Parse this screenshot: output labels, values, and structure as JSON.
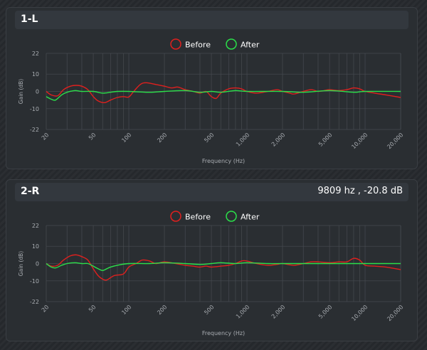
{
  "panels": [
    {
      "title": "1-L",
      "readout": "",
      "chart_data": {
        "type": "line",
        "xscale": "log",
        "xlim": [
          20,
          20000
        ],
        "ylim": [
          -22,
          22
        ],
        "xlabel": "Frequency (Hz)",
        "ylabel": "Gain (dB)",
        "xticks": [
          20,
          50,
          100,
          200,
          500,
          1000,
          2000,
          5000,
          10000,
          20000
        ],
        "xtick_labels": [
          "20",
          "50",
          "100",
          "200",
          "500",
          "1,000",
          "2,000",
          "5,000",
          "10,000",
          "20,000"
        ],
        "yticks": [
          22,
          10,
          0,
          -10,
          -22
        ],
        "ytick_labels": [
          "22",
          "10",
          "0",
          "-10",
          "-22"
        ],
        "legend_position": "top-center",
        "grid": true,
        "series": [
          {
            "name": "Before",
            "color": "#e0201e",
            "points": [
              [
                20,
                0
              ],
              [
                22,
                -2
              ],
              [
                25,
                -2.5
              ],
              [
                28,
                1
              ],
              [
                32,
                3
              ],
              [
                36,
                3.5
              ],
              [
                40,
                3
              ],
              [
                45,
                1
              ],
              [
                50,
                -3
              ],
              [
                55,
                -5.5
              ],
              [
                62,
                -6.5
              ],
              [
                70,
                -5
              ],
              [
                80,
                -3.5
              ],
              [
                90,
                -3
              ],
              [
                100,
                -3.2
              ],
              [
                110,
                0
              ],
              [
                125,
                4
              ],
              [
                140,
                5
              ],
              [
                170,
                4
              ],
              [
                200,
                3
              ],
              [
                230,
                2
              ],
              [
                260,
                2.5
              ],
              [
                300,
                1
              ],
              [
                350,
                0
              ],
              [
                400,
                -1
              ],
              [
                450,
                0
              ],
              [
                500,
                -3
              ],
              [
                550,
                -4
              ],
              [
                600,
                -1
              ],
              [
                700,
                1.5
              ],
              [
                800,
                2
              ],
              [
                900,
                1.5
              ],
              [
                1000,
                0
              ],
              [
                1200,
                -1
              ],
              [
                1500,
                0
              ],
              [
                1800,
                1
              ],
              [
                2000,
                0
              ],
              [
                2300,
                -1
              ],
              [
                2500,
                -1.5
              ],
              [
                3000,
                0
              ],
              [
                3500,
                1
              ],
              [
                4000,
                0
              ],
              [
                4500,
                0.5
              ],
              [
                5000,
                1
              ],
              [
                6000,
                0.5
              ],
              [
                7000,
                1
              ],
              [
                8000,
                2
              ],
              [
                9000,
                1.5
              ],
              [
                10000,
                0
              ],
              [
                12000,
                -1
              ],
              [
                15000,
                -2
              ],
              [
                20000,
                -3.5
              ]
            ]
          },
          {
            "name": "After",
            "color": "#2be04a",
            "points": [
              [
                20,
                -3
              ],
              [
                22,
                -4.5
              ],
              [
                24,
                -5
              ],
              [
                27,
                -2
              ],
              [
                30,
                -0.5
              ],
              [
                35,
                0.5
              ],
              [
                40,
                0
              ],
              [
                50,
                0
              ],
              [
                60,
                -1
              ],
              [
                70,
                -0.5
              ],
              [
                80,
                0
              ],
              [
                100,
                0
              ],
              [
                150,
                -0.5
              ],
              [
                200,
                0
              ],
              [
                300,
                0.5
              ],
              [
                400,
                -0.5
              ],
              [
                500,
                0
              ],
              [
                600,
                -0.5
              ],
              [
                800,
                0.5
              ],
              [
                1000,
                0
              ],
              [
                2000,
                0
              ],
              [
                3000,
                -0.5
              ],
              [
                5000,
                0.5
              ],
              [
                8000,
                -0.5
              ],
              [
                10000,
                0
              ],
              [
                20000,
                0
              ]
            ]
          }
        ]
      }
    },
    {
      "title": "2-R",
      "readout": "9809 hz , -20.8 dB",
      "chart_data": {
        "type": "line",
        "xscale": "log",
        "xlim": [
          20,
          20000
        ],
        "ylim": [
          -22,
          22
        ],
        "xlabel": "Frequency (Hz)",
        "ylabel": "Gain (dB)",
        "xticks": [
          20,
          50,
          100,
          200,
          500,
          1000,
          2000,
          5000,
          10000,
          20000
        ],
        "xtick_labels": [
          "20",
          "50",
          "100",
          "200",
          "500",
          "1,000",
          "2,000",
          "5,000",
          "10,000",
          "20,000"
        ],
        "yticks": [
          22,
          10,
          0,
          -10,
          -22
        ],
        "ytick_labels": [
          "22",
          "10",
          "0",
          "-10",
          "-22"
        ],
        "legend_position": "top-center",
        "grid": true,
        "series": [
          {
            "name": "Before",
            "color": "#e0201e",
            "points": [
              [
                20,
                0
              ],
              [
                22,
                -1.5
              ],
              [
                25,
                -1
              ],
              [
                28,
                2
              ],
              [
                32,
                4.5
              ],
              [
                36,
                5
              ],
              [
                40,
                4
              ],
              [
                45,
                2
              ],
              [
                50,
                -3
              ],
              [
                55,
                -7
              ],
              [
                60,
                -9
              ],
              [
                65,
                -9.5
              ],
              [
                75,
                -7
              ],
              [
                90,
                -6
              ],
              [
                100,
                -2
              ],
              [
                115,
                0
              ],
              [
                130,
                2
              ],
              [
                150,
                1.5
              ],
              [
                170,
                0
              ],
              [
                200,
                1
              ],
              [
                250,
                0
              ],
              [
                300,
                -1
              ],
              [
                350,
                -1.5
              ],
              [
                400,
                -2
              ],
              [
                450,
                -1.5
              ],
              [
                500,
                -2
              ],
              [
                600,
                -1.5
              ],
              [
                700,
                -1
              ],
              [
                800,
                0
              ],
              [
                900,
                1.5
              ],
              [
                1000,
                1.5
              ],
              [
                1200,
                0
              ],
              [
                1500,
                -1
              ],
              [
                1800,
                -0.5
              ],
              [
                2000,
                0
              ],
              [
                2500,
                -1
              ],
              [
                3000,
                0
              ],
              [
                3500,
                1
              ],
              [
                4000,
                1
              ],
              [
                5000,
                0.5
              ],
              [
                6000,
                1
              ],
              [
                7000,
                1
              ],
              [
                8000,
                3
              ],
              [
                9000,
                2
              ],
              [
                10000,
                -1
              ],
              [
                12000,
                -1.5
              ],
              [
                15000,
                -2
              ],
              [
                20000,
                -3.5
              ]
            ]
          },
          {
            "name": "After",
            "color": "#2be04a",
            "points": [
              [
                20,
                0
              ],
              [
                22,
                -2
              ],
              [
                24,
                -2.5
              ],
              [
                27,
                -1
              ],
              [
                30,
                0
              ],
              [
                35,
                0.5
              ],
              [
                40,
                0
              ],
              [
                45,
                0
              ],
              [
                50,
                -1.5
              ],
              [
                55,
                -3
              ],
              [
                60,
                -4
              ],
              [
                65,
                -3
              ],
              [
                70,
                -2
              ],
              [
                80,
                -1
              ],
              [
                100,
                0
              ],
              [
                150,
                0
              ],
              [
                200,
                0.5
              ],
              [
                300,
                0
              ],
              [
                400,
                -0.5
              ],
              [
                500,
                0
              ],
              [
                600,
                0.5
              ],
              [
                800,
                0
              ],
              [
                1000,
                0.5
              ],
              [
                1500,
                0
              ],
              [
                2000,
                0
              ],
              [
                3000,
                0
              ],
              [
                5000,
                0
              ],
              [
                8000,
                0
              ],
              [
                10000,
                0
              ],
              [
                20000,
                0
              ]
            ]
          }
        ]
      }
    }
  ]
}
